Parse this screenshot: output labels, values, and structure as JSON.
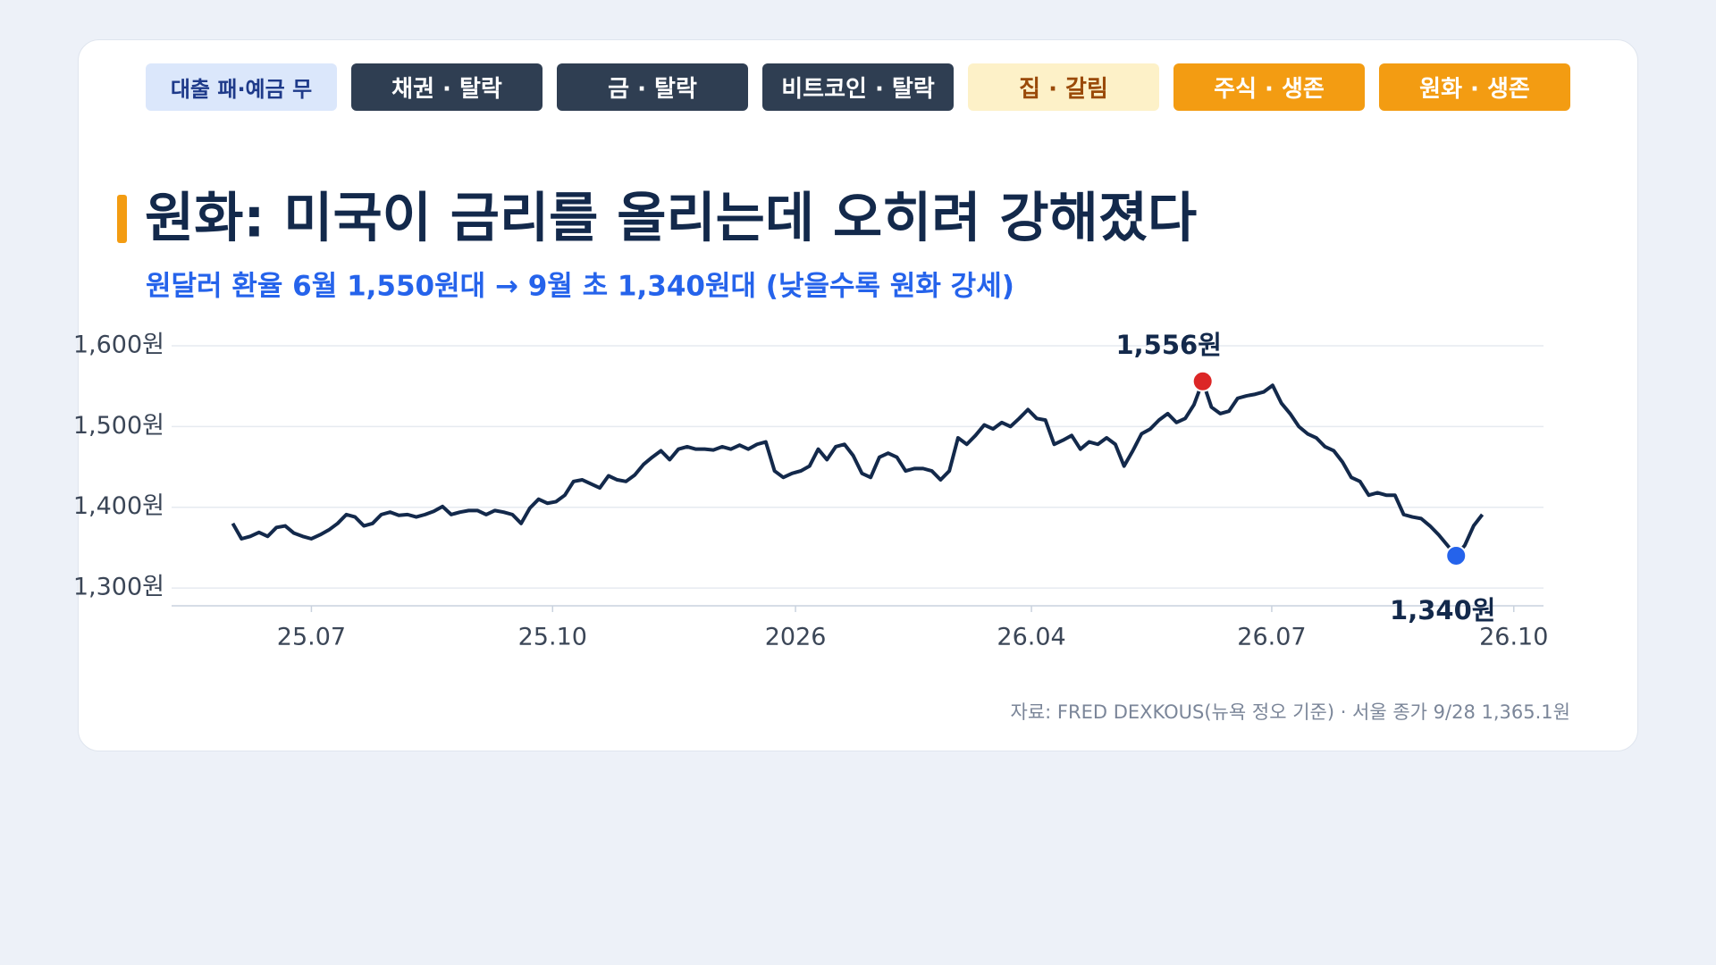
{
  "tabs": [
    "대출 패·예금 무",
    "채권 · 탈락",
    "금 · 탈락",
    "비트코인 · 탈락",
    "집 · 갈림",
    "주식 · 생존",
    "원화 · 생존"
  ],
  "chart_data": {
    "type": "line",
    "title": "원화: 미국이 금리를 올리는데 오히려 강해졌다",
    "subtitle": "원달러 환율 6월 1,550원대 → 9월 초 1,340원대 (낮을수록 원화 강세)",
    "series": [
      {
        "name": "원달러 환율",
        "color": "#13294b",
        "values": [
          1380,
          1361,
          1364,
          1369,
          1364,
          1375,
          1377,
          1368,
          1364,
          1361,
          1366,
          1372,
          1380,
          1391,
          1388,
          1377,
          1380,
          1391,
          1394,
          1390,
          1391,
          1388,
          1391,
          1395,
          1401,
          1391,
          1394,
          1396,
          1396,
          1391,
          1396,
          1394,
          1391,
          1380,
          1399,
          1410,
          1405,
          1407,
          1415,
          1432,
          1434,
          1429,
          1424,
          1439,
          1434,
          1432,
          1440,
          1453,
          1462,
          1470,
          1459,
          1472,
          1475,
          1472,
          1472,
          1471,
          1475,
          1472,
          1477,
          1472,
          1478,
          1481,
          1445,
          1437,
          1442,
          1445,
          1451,
          1472,
          1459,
          1475,
          1478,
          1464,
          1442,
          1437,
          1462,
          1467,
          1462,
          1445,
          1448,
          1448,
          1445,
          1434,
          1445,
          1486,
          1478,
          1489,
          1502,
          1497,
          1505,
          1500,
          1510,
          1521,
          1510,
          1508,
          1478,
          1483,
          1489,
          1472,
          1481,
          1478,
          1486,
          1478,
          1451,
          1470,
          1491,
          1497,
          1508,
          1516,
          1505,
          1510,
          1527,
          1556,
          1524,
          1516,
          1519,
          1535,
          1538,
          1540,
          1543,
          1551,
          1529,
          1516,
          1500,
          1491,
          1486,
          1475,
          1470,
          1456,
          1437,
          1432,
          1415,
          1418,
          1415,
          1415,
          1391,
          1388,
          1386,
          1377,
          1366,
          1353,
          1340,
          1353,
          1377,
          1391
        ]
      }
    ],
    "annotations": [
      {
        "x": 111,
        "label": "1,556원",
        "color": "#dc2626"
      },
      {
        "x": 140,
        "label": "1,340원",
        "color": "#2563eb"
      }
    ],
    "xlim": [
      -7,
      150
    ],
    "xticks": [
      {
        "value": 9,
        "label": "25.07"
      },
      {
        "value": 36.6,
        "label": "25.10"
      },
      {
        "value": 64.4,
        "label": "2026"
      },
      {
        "value": 91.4,
        "label": "26.04"
      },
      {
        "value": 118.9,
        "label": "26.07"
      },
      {
        "value": 146.6,
        "label": "26.10"
      }
    ],
    "ylim": [
      1278,
      1600
    ],
    "yticks": [
      {
        "value": 1300,
        "label": "1,300원"
      },
      {
        "value": 1400,
        "label": "1,400원"
      },
      {
        "value": 1500,
        "label": "1,500원"
      },
      {
        "value": 1600,
        "label": "1,600원"
      }
    ],
    "grid": true,
    "source": "자료: FRED DEXKOUS(뉴욕 정오 기준) · 서울 종가 9/28 1,365.1원"
  }
}
